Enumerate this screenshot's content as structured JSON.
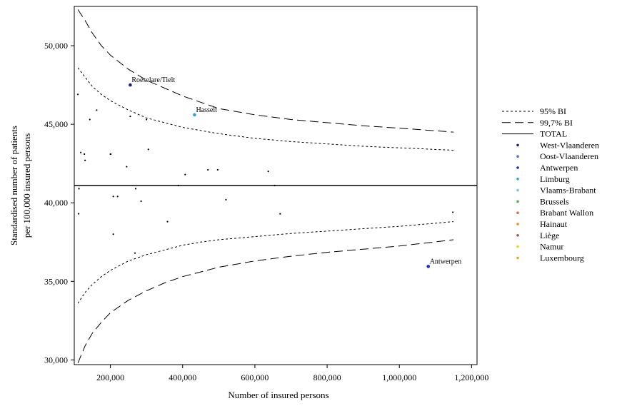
{
  "chart_data": {
    "type": "scatter",
    "xlabel": "Number of insured persons",
    "ylabel_lines": [
      "Standardised number of patients",
      "per 100,000 insured persons"
    ],
    "xlim": [
      100000,
      1215000
    ],
    "ylim": [
      29700,
      52500
    ],
    "x_ticks": [
      {
        "value": 200000,
        "label": "200,000"
      },
      {
        "value": 400000,
        "label": "400,000"
      },
      {
        "value": 600000,
        "label": "600,000"
      },
      {
        "value": 800000,
        "label": "800,000"
      },
      {
        "value": 1000000,
        "label": "1,000,000"
      },
      {
        "value": 1200000,
        "label": "1,200,000"
      }
    ],
    "y_ticks": [
      {
        "value": 30000,
        "label": "30,000"
      },
      {
        "value": 35000,
        "label": "35,000"
      },
      {
        "value": 40000,
        "label": "40,000"
      },
      {
        "value": 45000,
        "label": "45,000"
      },
      {
        "value": 50000,
        "label": "50,000"
      }
    ],
    "grid": false,
    "legend_position": "right",
    "total": 41100,
    "lines": [
      {
        "key": "upper997",
        "label": "99,7% BI",
        "style": "long-dash",
        "x": [
          110000,
          130000,
          150000,
          175000,
          200000,
          250000,
          300000,
          350000,
          400000,
          450000,
          500000,
          600000,
          700000,
          800000,
          900000,
          1000000,
          1150000
        ],
        "y": [
          52300,
          51600,
          50800,
          50000,
          49400,
          48500,
          47800,
          47300,
          46800,
          46400,
          46000,
          45600,
          45300,
          45100,
          44900,
          44750,
          44500
        ]
      },
      {
        "key": "upper95",
        "label": "95% BI",
        "style": "short-dash",
        "x": [
          110000,
          130000,
          150000,
          175000,
          200000,
          250000,
          300000,
          350000,
          400000,
          450000,
          500000,
          600000,
          700000,
          800000,
          900000,
          1000000,
          1150000
        ],
        "y": [
          48600,
          48000,
          47400,
          46900,
          46500,
          45900,
          45400,
          45100,
          44800,
          44600,
          44400,
          44100,
          43900,
          43750,
          43600,
          43500,
          43350
        ]
      },
      {
        "key": "lower95",
        "label": "",
        "style": "short-dash",
        "x": [
          110000,
          130000,
          150000,
          175000,
          200000,
          250000,
          300000,
          350000,
          400000,
          450000,
          500000,
          600000,
          700000,
          800000,
          900000,
          1000000,
          1150000
        ],
        "y": [
          33600,
          34300,
          34800,
          35300,
          35700,
          36300,
          36700,
          37000,
          37300,
          37500,
          37650,
          37850,
          38050,
          38200,
          38350,
          38500,
          38800
        ]
      },
      {
        "key": "lower997",
        "label": "",
        "style": "long-dash",
        "x": [
          110000,
          130000,
          150000,
          175000,
          200000,
          250000,
          300000,
          350000,
          400000,
          450000,
          500000,
          600000,
          700000,
          800000,
          900000,
          1000000,
          1150000
        ],
        "y": [
          29800,
          30900,
          31700,
          32400,
          33000,
          33800,
          34400,
          34900,
          35300,
          35600,
          35900,
          36300,
          36600,
          36850,
          37050,
          37250,
          37650
        ]
      }
    ],
    "legend": [
      {
        "label": "95% BI",
        "kind": "short-dash"
      },
      {
        "label": "99,7% BI",
        "kind": "long-dash"
      },
      {
        "label": "TOTAL",
        "kind": "solid"
      },
      {
        "label": "West-Vlaanderen",
        "kind": "dot",
        "color": "#1f1f8f"
      },
      {
        "label": "Oost-Vlaanderen",
        "kind": "dot",
        "color": "#4a6fd6"
      },
      {
        "label": "Antwerpen",
        "kind": "dot",
        "color": "#1428e0"
      },
      {
        "label": "Limburg",
        "kind": "dot",
        "color": "#2a9fe0"
      },
      {
        "label": "Vlaams-Brabant",
        "kind": "dot",
        "color": "#6cc8ea"
      },
      {
        "label": "Brussels",
        "kind": "dot",
        "color": "#3cb44b"
      },
      {
        "label": "Brabant Wallon",
        "kind": "dot",
        "color": "#d9733a"
      },
      {
        "label": "Hainaut",
        "kind": "dot",
        "color": "#f08a1c"
      },
      {
        "label": "Liège",
        "kind": "dot",
        "color": "#b5533a"
      },
      {
        "label": "Namur",
        "kind": "dot",
        "color": "#f2d21b"
      },
      {
        "label": "Luxembourg",
        "kind": "dot",
        "color": "#f0a022"
      }
    ],
    "highlighted_points": [
      {
        "label": "Roeselare/Tielt",
        "x": 255000,
        "y": 47500,
        "color": "#1f1f8f"
      },
      {
        "label": "Hasselt",
        "x": 433000,
        "y": 45600,
        "color": "#2a9fe0"
      },
      {
        "label": "Antwerpen",
        "x": 1080000,
        "y": 35950,
        "color": "#1428e0"
      }
    ],
    "points": [
      {
        "x": 110000,
        "y": 46900
      },
      {
        "x": 113000,
        "y": 40900
      },
      {
        "x": 112000,
        "y": 39300
      },
      {
        "x": 118000,
        "y": 43200
      },
      {
        "x": 128000,
        "y": 43100
      },
      {
        "x": 130000,
        "y": 42700
      },
      {
        "x": 143000,
        "y": 45300
      },
      {
        "x": 162000,
        "y": 45900
      },
      {
        "x": 200000,
        "y": 43100
      },
      {
        "x": 201000,
        "y": 43100
      },
      {
        "x": 208000,
        "y": 40400
      },
      {
        "x": 208000,
        "y": 38000
      },
      {
        "x": 220000,
        "y": 40400
      },
      {
        "x": 245000,
        "y": 42300
      },
      {
        "x": 255000,
        "y": 45500
      },
      {
        "x": 268000,
        "y": 36800
      },
      {
        "x": 270000,
        "y": 40900
      },
      {
        "x": 285000,
        "y": 40100
      },
      {
        "x": 300000,
        "y": 45300
      },
      {
        "x": 305000,
        "y": 43400
      },
      {
        "x": 358000,
        "y": 38800
      },
      {
        "x": 388000,
        "y": 41100
      },
      {
        "x": 407000,
        "y": 41800
      },
      {
        "x": 470000,
        "y": 42100
      },
      {
        "x": 497000,
        "y": 42100
      },
      {
        "x": 520000,
        "y": 40200
      },
      {
        "x": 637000,
        "y": 42000
      },
      {
        "x": 655000,
        "y": 41100
      },
      {
        "x": 670000,
        "y": 39300
      },
      {
        "x": 1148000,
        "y": 39400
      }
    ]
  }
}
